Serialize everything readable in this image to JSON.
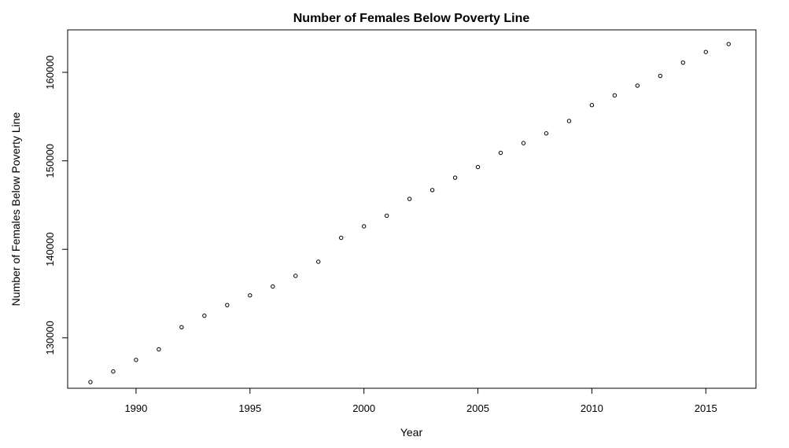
{
  "chart_data": {
    "type": "scatter",
    "title": "Number of Females Below Poverty Line",
    "xlabel": "Year",
    "ylabel": "Number of Females Below Poverty Line",
    "xlim": [
      1987.0,
      2017.2
    ],
    "ylim": [
      124300,
      164800
    ],
    "x_ticks": [
      1990,
      1995,
      2000,
      2005,
      2010,
      2015
    ],
    "y_ticks": [
      130000,
      140000,
      150000,
      160000
    ],
    "grid": false,
    "marker": "open-circle",
    "series": [
      {
        "x": [
          1988,
          1989,
          1990,
          1991,
          1992,
          1993,
          1994,
          1995,
          1996,
          1997,
          1998,
          1999,
          2000,
          2001,
          2002,
          2003,
          2004,
          2005,
          2006,
          2007,
          2008,
          2009,
          2010,
          2011,
          2012,
          2013,
          2014,
          2015,
          2016
        ],
        "y": [
          125000,
          126200,
          127500,
          128700,
          131200,
          132500,
          133700,
          134800,
          135800,
          137000,
          138600,
          141300,
          142600,
          143800,
          145700,
          146700,
          148100,
          149300,
          150900,
          152000,
          153100,
          154500,
          156300,
          157400,
          158500,
          159600,
          161100,
          162300,
          163200
        ]
      }
    ]
  }
}
